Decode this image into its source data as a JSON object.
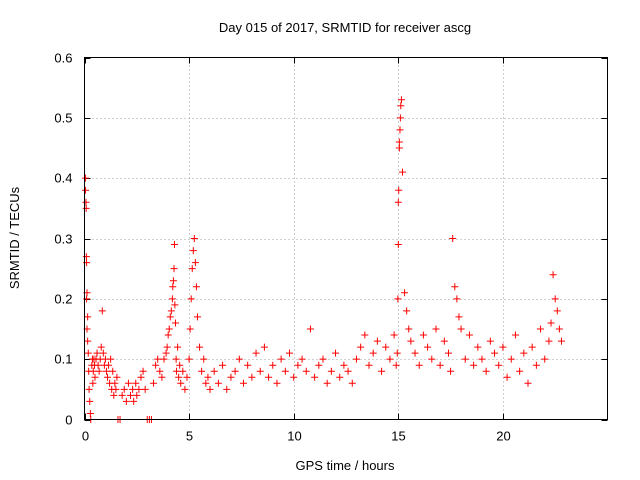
{
  "chart_data": {
    "type": "scatter",
    "title": "Day 015 of 2017, SRMTID for receiver ascg",
    "xlabel": "GPS time / hours",
    "ylabel": "SRMTID / TECUs",
    "xlim": [
      0,
      25
    ],
    "ylim": [
      0,
      0.6
    ],
    "x_ticks": [
      0,
      5,
      10,
      15,
      20
    ],
    "x_tick_labels": [
      "0",
      "5",
      "10",
      "15",
      "20"
    ],
    "y_ticks": [
      0,
      0.1,
      0.2,
      0.3,
      0.4,
      0.5,
      0.6
    ],
    "y_tick_labels": [
      "0",
      "0.1",
      "0.2",
      "0.3",
      "0.4",
      "0.5",
      "0.6"
    ],
    "grid": true,
    "marker": "+",
    "color": "#ff0000",
    "series": [
      {
        "name": "SRMTID",
        "x": [
          0.05,
          0.05,
          0.07,
          0.08,
          0.09,
          0.1,
          0.1,
          0.12,
          0.12,
          0.15,
          0.15,
          0.18,
          0.2,
          0.22,
          0.25,
          0.28,
          0.3,
          0.35,
          0.38,
          0.4,
          0.42,
          0.45,
          0.48,
          0.5,
          0.55,
          0.6,
          0.65,
          0.7,
          0.75,
          0.8,
          0.85,
          0.9,
          0.95,
          1.0,
          1.05,
          1.1,
          1.15,
          1.2,
          1.25,
          1.3,
          1.35,
          1.4,
          1.45,
          1.5,
          1.55,
          1.6,
          1.7,
          1.8,
          1.9,
          2.0,
          2.1,
          2.2,
          2.3,
          2.35,
          2.45,
          2.5,
          2.6,
          2.7,
          2.8,
          2.9,
          3.0,
          3.1,
          3.2,
          3.3,
          3.4,
          3.5,
          3.6,
          3.7,
          3.8,
          3.9,
          3.95,
          4.0,
          4.05,
          4.1,
          4.15,
          4.2,
          4.22,
          4.25,
          4.28,
          4.3,
          4.32,
          4.35,
          4.38,
          4.4,
          4.45,
          4.5,
          4.55,
          4.6,
          4.7,
          4.8,
          4.9,
          5.0,
          5.05,
          5.1,
          5.15,
          5.2,
          5.25,
          5.3,
          5.35,
          5.4,
          5.5,
          5.6,
          5.7,
          5.8,
          5.9,
          6.0,
          6.2,
          6.4,
          6.6,
          6.8,
          7.0,
          7.2,
          7.4,
          7.6,
          7.8,
          8.0,
          8.2,
          8.4,
          8.6,
          8.8,
          9.0,
          9.2,
          9.4,
          9.6,
          9.8,
          10.0,
          10.2,
          10.4,
          10.6,
          10.8,
          11.0,
          11.2,
          11.4,
          11.6,
          11.8,
          12.0,
          12.2,
          12.4,
          12.6,
          12.8,
          13.0,
          13.2,
          13.4,
          13.6,
          13.8,
          14.0,
          14.2,
          14.4,
          14.6,
          14.8,
          14.9,
          14.95,
          14.98,
          15.0,
          15.0,
          15.02,
          15.05,
          15.05,
          15.08,
          15.1,
          15.12,
          15.15,
          15.2,
          15.3,
          15.4,
          15.5,
          15.6,
          15.8,
          16.0,
          16.2,
          16.4,
          16.6,
          16.8,
          17.0,
          17.2,
          17.4,
          17.5,
          17.6,
          17.7,
          17.8,
          17.9,
          18.0,
          18.2,
          18.4,
          18.6,
          18.8,
          19.0,
          19.2,
          19.4,
          19.6,
          19.8,
          20.0,
          20.2,
          20.4,
          20.6,
          20.8,
          21.0,
          21.2,
          21.4,
          21.6,
          21.8,
          22.0,
          22.2,
          22.3,
          22.4,
          22.5,
          22.6,
          22.7,
          22.8
        ],
        "y": [
          0.4,
          0.38,
          0.36,
          0.35,
          0.27,
          0.26,
          0.2,
          0.21,
          0.15,
          0.17,
          0.13,
          0.11,
          0.08,
          0.05,
          0.03,
          0.01,
          0.0,
          0.09,
          0.1,
          0.06,
          0.08,
          0.1,
          0.09,
          0.07,
          0.1,
          0.11,
          0.09,
          0.08,
          0.1,
          0.12,
          0.18,
          0.11,
          0.09,
          0.1,
          0.08,
          0.07,
          0.09,
          0.06,
          0.1,
          0.05,
          0.08,
          0.04,
          0.06,
          0.05,
          0.07,
          0.0,
          0.0,
          0.04,
          0.05,
          0.03,
          0.06,
          0.04,
          0.05,
          0.03,
          0.06,
          0.04,
          0.05,
          0.07,
          0.08,
          0.05,
          0.0,
          0.0,
          0.0,
          0.06,
          0.09,
          0.1,
          0.08,
          0.07,
          0.1,
          0.11,
          0.12,
          0.14,
          0.15,
          0.17,
          0.18,
          0.2,
          0.22,
          0.23,
          0.25,
          0.29,
          0.19,
          0.16,
          0.1,
          0.08,
          0.12,
          0.07,
          0.09,
          0.06,
          0.08,
          0.05,
          0.07,
          0.1,
          0.15,
          0.2,
          0.25,
          0.28,
          0.3,
          0.26,
          0.22,
          0.17,
          0.12,
          0.08,
          0.1,
          0.06,
          0.07,
          0.05,
          0.08,
          0.06,
          0.09,
          0.05,
          0.07,
          0.08,
          0.1,
          0.06,
          0.09,
          0.07,
          0.11,
          0.08,
          0.12,
          0.07,
          0.09,
          0.06,
          0.1,
          0.08,
          0.11,
          0.07,
          0.09,
          0.1,
          0.08,
          0.15,
          0.07,
          0.09,
          0.1,
          0.06,
          0.08,
          0.11,
          0.07,
          0.09,
          0.08,
          0.06,
          0.1,
          0.12,
          0.14,
          0.09,
          0.11,
          0.13,
          0.08,
          0.12,
          0.1,
          0.14,
          0.09,
          0.11,
          0.2,
          0.29,
          0.36,
          0.38,
          0.45,
          0.46,
          0.48,
          0.5,
          0.52,
          0.53,
          0.41,
          0.21,
          0.18,
          0.15,
          0.13,
          0.11,
          0.09,
          0.14,
          0.12,
          0.1,
          0.15,
          0.09,
          0.13,
          0.11,
          0.08,
          0.3,
          0.22,
          0.2,
          0.17,
          0.15,
          0.1,
          0.14,
          0.09,
          0.12,
          0.1,
          0.08,
          0.13,
          0.11,
          0.09,
          0.12,
          0.07,
          0.1,
          0.14,
          0.08,
          0.11,
          0.06,
          0.12,
          0.09,
          0.15,
          0.1,
          0.13,
          0.16,
          0.24,
          0.2,
          0.18,
          0.15,
          0.13
        ]
      }
    ]
  }
}
